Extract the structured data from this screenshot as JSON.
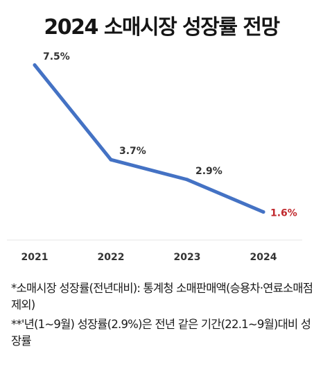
{
  "title": "2024 소매시장 성장률 전망",
  "chart_data": {
    "type": "line",
    "title": "2024 소매시장 성장률 전망",
    "xlabel": "",
    "ylabel": "",
    "categories": [
      "2021",
      "2022",
      "2023",
      "2024"
    ],
    "series": [
      {
        "values": [
          7.5,
          3.7,
          2.9,
          1.6
        ],
        "labels": [
          "7.5%",
          "3.7%",
          "2.9%",
          "1.6%"
        ],
        "color": "#4472c4"
      }
    ],
    "highlight_color": "#c0282d",
    "label_color": "#333333",
    "ylim": [
      0,
      8
    ],
    "grid": false,
    "legend": "none"
  },
  "footnotes": [
    "*소매시장 성장률(전년대비): 통계청 소매판매액(승용차·연료소매점 제외)",
    "**'년(1~9월) 성장률(2.9%)은 전년 같은 기간(22.1~9월)대비 성장률"
  ]
}
